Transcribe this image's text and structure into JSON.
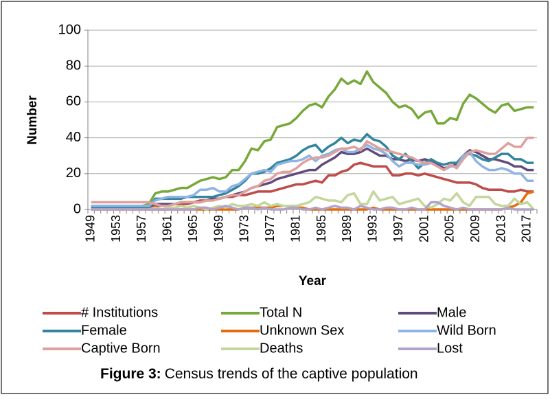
{
  "chart_data": {
    "type": "line",
    "y_label": "Number",
    "x_label": "Year",
    "figure_label": "Figure 3:",
    "caption": "Census trends of the captive population",
    "categories": [
      "1949",
      null,
      null,
      null,
      "1953",
      null,
      null,
      null,
      "1957",
      null,
      null,
      null,
      "1961",
      null,
      null,
      null,
      "1965",
      null,
      null,
      null,
      "1969",
      null,
      null,
      null,
      "1973",
      null,
      null,
      null,
      "1977",
      null,
      null,
      null,
      "1981",
      null,
      null,
      null,
      "1985",
      null,
      null,
      null,
      "1989",
      null,
      null,
      null,
      "1993",
      null,
      null,
      null,
      "1997",
      null,
      null,
      null,
      "2001",
      null,
      null,
      null,
      "2005",
      null,
      null,
      null,
      "2009",
      null,
      null,
      null,
      "2013",
      null,
      null,
      null,
      "2017",
      null
    ],
    "ylim": [
      0,
      100
    ],
    "yticks": [
      0,
      20,
      40,
      60,
      80,
      100
    ],
    "grid": true,
    "series": [
      {
        "name": "# Institutions",
        "color": "#be4b48",
        "values": [
          1,
          1,
          1,
          1,
          1,
          1,
          1,
          1,
          1,
          1,
          2,
          2,
          2,
          3,
          3,
          3,
          4,
          5,
          5,
          6,
          6,
          7,
          7,
          8,
          8,
          9,
          10,
          10,
          10,
          11,
          12,
          13,
          14,
          14,
          15,
          16,
          15,
          19,
          19,
          21,
          22,
          25,
          26,
          25,
          24,
          24,
          24,
          19,
          19,
          20,
          20,
          19,
          20,
          19,
          18,
          17,
          16,
          15,
          15,
          15,
          14,
          12,
          11,
          11,
          11,
          10,
          10,
          11,
          10,
          10
        ]
      },
      {
        "name": "Total N",
        "color": "#77a83a",
        "values": [
          2,
          2,
          2,
          2,
          2,
          2,
          2,
          2,
          2,
          3,
          9,
          10,
          10,
          11,
          12,
          12,
          14,
          16,
          17,
          18,
          17,
          18,
          22,
          22,
          27,
          34,
          33,
          38,
          39,
          46,
          47,
          48,
          51,
          55,
          58,
          59,
          57,
          63,
          67,
          73,
          70,
          72,
          70,
          77,
          71,
          68,
          65,
          60,
          57,
          58,
          56,
          51,
          54,
          55,
          48,
          48,
          51,
          50,
          59,
          64,
          62,
          59,
          56,
          54,
          58,
          59,
          55,
          56,
          57,
          57
        ]
      },
      {
        "name": "Male",
        "color": "#604a7b",
        "values": [
          2,
          2,
          2,
          2,
          2,
          2,
          2,
          2,
          2,
          2,
          3,
          3,
          3,
          3,
          4,
          4,
          4,
          4,
          5,
          6,
          6,
          7,
          8,
          9,
          10,
          12,
          13,
          14,
          15,
          17,
          18,
          19,
          20,
          21,
          22,
          22,
          25,
          27,
          29,
          32,
          31,
          31,
          32,
          34,
          32,
          30,
          30,
          28,
          28,
          27,
          28,
          27,
          28,
          27,
          25,
          23,
          24,
          25,
          30,
          33,
          32,
          30,
          28,
          28,
          27,
          26,
          24,
          24,
          22,
          22
        ]
      },
      {
        "name": "Female",
        "color": "#31859c",
        "values": [
          1,
          1,
          1,
          1,
          1,
          1,
          1,
          1,
          1,
          1,
          6,
          6,
          6,
          6,
          6,
          7,
          7,
          7,
          7,
          7,
          8,
          9,
          11,
          13,
          16,
          20,
          20,
          21,
          23,
          26,
          27,
          28,
          30,
          33,
          35,
          36,
          32,
          35,
          37,
          40,
          37,
          39,
          38,
          42,
          39,
          38,
          35,
          30,
          28,
          31,
          27,
          23,
          26,
          28,
          26,
          25,
          26,
          26,
          30,
          31,
          30,
          28,
          27,
          29,
          31,
          31,
          28,
          28,
          26,
          26
        ]
      },
      {
        "name": "Unknown Sex",
        "color": "#e46c0a",
        "values": [
          0,
          0,
          0,
          0,
          0,
          0,
          0,
          0,
          0,
          0,
          0,
          0,
          0,
          0,
          0,
          0,
          0,
          0,
          0,
          0,
          0,
          0,
          0,
          0,
          1,
          1,
          1,
          1,
          1,
          2,
          2,
          2,
          1,
          1,
          0,
          0,
          0,
          0,
          0,
          0,
          0,
          0,
          0,
          0,
          1,
          0,
          0,
          0,
          0,
          0,
          0,
          0,
          0,
          0,
          0,
          0,
          0,
          0,
          0,
          0,
          0,
          0,
          0,
          0,
          0,
          1,
          2,
          4,
          9,
          10
        ]
      },
      {
        "name": "Wild Born",
        "color": "#8eb4e3",
        "values": [
          2,
          2,
          2,
          2,
          2,
          2,
          2,
          2,
          2,
          2,
          5,
          6,
          7,
          7,
          7,
          7,
          8,
          11,
          11,
          12,
          10,
          10,
          13,
          14,
          17,
          20,
          21,
          22,
          21,
          25,
          26,
          27,
          27,
          28,
          30,
          27,
          30,
          31,
          33,
          34,
          32,
          32,
          34,
          36,
          34,
          33,
          31,
          27,
          24,
          26,
          26,
          25,
          25,
          26,
          24,
          22,
          24,
          24,
          30,
          32,
          27,
          24,
          22,
          22,
          23,
          22,
          20,
          20,
          16,
          16
        ]
      },
      {
        "name": "Captive Born",
        "color": "#e0a09e",
        "values": [
          4,
          4,
          4,
          4,
          4,
          4,
          4,
          4,
          4,
          4,
          3,
          2,
          2,
          3,
          4,
          4,
          4,
          4,
          5,
          5,
          6,
          7,
          8,
          8,
          10,
          12,
          13,
          16,
          17,
          20,
          21,
          21,
          23,
          26,
          28,
          29,
          29,
          30,
          32,
          34,
          34,
          35,
          33,
          38,
          36,
          34,
          33,
          32,
          31,
          30,
          29,
          27,
          26,
          26,
          24,
          22,
          25,
          23,
          28,
          32,
          33,
          32,
          31,
          31,
          34,
          37,
          35,
          35,
          40,
          40
        ]
      },
      {
        "name": "Deaths",
        "color": "#c3d69b",
        "values": [
          0,
          0,
          0,
          0,
          0,
          0,
          0,
          0,
          0,
          0,
          1,
          0,
          1,
          1,
          2,
          1,
          2,
          1,
          0,
          1,
          2,
          1,
          3,
          2,
          2,
          3,
          2,
          4,
          2,
          3,
          2,
          2,
          2,
          3,
          4,
          7,
          6,
          5,
          5,
          4,
          8,
          9,
          3,
          3,
          10,
          5,
          6,
          7,
          3,
          4,
          5,
          6,
          2,
          1,
          3,
          6,
          5,
          9,
          4,
          2,
          7,
          7,
          7,
          3,
          2,
          2,
          6,
          3,
          4,
          0
        ]
      },
      {
        "name": "Lost",
        "color": "#b3a2c7",
        "values": [
          0,
          0,
          0,
          0,
          0,
          0,
          0,
          0,
          0,
          0,
          0,
          0,
          0,
          0,
          0,
          0,
          0,
          1,
          1,
          0,
          1,
          2,
          1,
          0,
          1,
          1,
          0,
          1,
          0,
          0,
          0,
          1,
          1,
          0,
          0,
          1,
          0,
          1,
          2,
          1,
          1,
          0,
          2,
          1,
          0,
          0,
          1,
          1,
          0,
          0,
          1,
          0,
          0,
          4,
          4,
          2,
          1,
          0,
          1,
          0,
          0,
          0,
          0,
          0,
          0,
          1,
          0,
          0,
          0,
          0
        ]
      }
    ]
  }
}
